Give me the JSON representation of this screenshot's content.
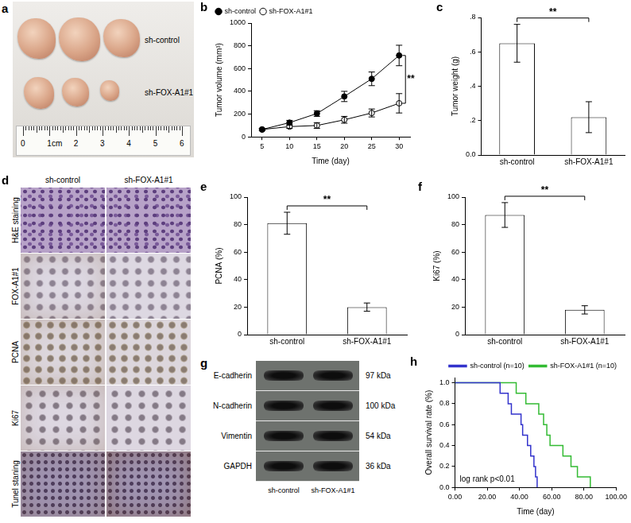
{
  "figure_a": {
    "panel": "a",
    "type": "photo",
    "rows": [
      "sh-control",
      "sh-FOX-A1#1"
    ],
    "ruler_labels": [
      "0",
      "1cm",
      "2",
      "3",
      "4",
      "5",
      "6"
    ]
  },
  "chart_data": [
    {
      "panel": "b",
      "type": "line",
      "x": [
        5,
        10,
        15,
        20,
        25,
        30
      ],
      "xlim": [
        3,
        32
      ],
      "xticks": [
        5,
        10,
        15,
        20,
        25,
        30
      ],
      "ylim": [
        0,
        1000
      ],
      "yticks": [
        0,
        200,
        400,
        600,
        800,
        1000
      ],
      "x_label": "Time (day)",
      "y_label": "Tumor volume (mm³)",
      "grid": false,
      "legend": "top-left",
      "annotation": "**",
      "series": [
        {
          "name": "sh-control",
          "color": "#000000",
          "marker": "filled_circle",
          "values": [
            65,
            125,
            205,
            355,
            510,
            715
          ],
          "errors": [
            10,
            20,
            25,
            45,
            60,
            90
          ]
        },
        {
          "name": "sh-FOX-A1#1",
          "color": "#000000",
          "marker": "open_circle",
          "values": [
            65,
            90,
            100,
            150,
            210,
            295
          ],
          "errors": [
            8,
            15,
            25,
            30,
            35,
            85
          ]
        }
      ]
    },
    {
      "panel": "c",
      "type": "bar",
      "categories": [
        "sh-control",
        "sh-FOX-A1#1"
      ],
      "values": [
        0.65,
        0.22
      ],
      "errors": [
        0.11,
        0.09
      ],
      "color": "#ffffff",
      "ylim": [
        0,
        0.8
      ],
      "yticks": [
        {
          "value": 0,
          "label": "0.0"
        },
        {
          "value": 0.2,
          "label": ".2"
        },
        {
          "value": 0.4,
          "label": ".4"
        },
        {
          "value": 0.6,
          "label": ".6"
        },
        {
          "value": 0.8,
          "label": ".8"
        }
      ],
      "y_label": "Tumor weight (g)",
      "grid": false,
      "annotation": "**"
    },
    {
      "panel": "e",
      "type": "bar",
      "categories": [
        "sh-control",
        "sh-FOX-A1#1"
      ],
      "values": [
        81,
        20
      ],
      "errors": [
        8,
        3
      ],
      "color": "#ffffff",
      "ylim": [
        0,
        100
      ],
      "yticks": [
        0,
        20,
        40,
        60,
        80,
        100
      ],
      "y_label": "PCNA (%)",
      "grid": false,
      "annotation": "**"
    },
    {
      "panel": "f",
      "type": "bar",
      "categories": [
        "sh-control",
        "sh-FOX-A1#1"
      ],
      "values": [
        87,
        18
      ],
      "errors": [
        9,
        3
      ],
      "color": "#ffffff",
      "ylim": [
        0,
        100
      ],
      "yticks": [
        0,
        20,
        40,
        60,
        80,
        100
      ],
      "y_label": "Ki67 (%)",
      "grid": false,
      "annotation": "**"
    },
    {
      "panel": "h",
      "type": "line",
      "line_style": "step",
      "xlim": [
        0,
        100
      ],
      "xticks": [
        {
          "value": 0,
          "label": "0.00"
        },
        {
          "value": 20,
          "label": "20.00"
        },
        {
          "value": 40,
          "label": "40.00"
        },
        {
          "value": 60,
          "label": "60.00"
        },
        {
          "value": 80,
          "label": "80.00"
        },
        {
          "value": 100,
          "label": "100.00"
        }
      ],
      "ylim": [
        0,
        1.05
      ],
      "yticks": [
        {
          "value": 0,
          "label": "0.0"
        },
        {
          "value": 0.2,
          "label": "0.2"
        },
        {
          "value": 0.4,
          "label": "0.4"
        },
        {
          "value": 0.6,
          "label": "0.6"
        },
        {
          "value": 0.8,
          "label": "0.8"
        },
        {
          "value": 1,
          "label": "1.0"
        }
      ],
      "x_label": "Time (day)",
      "y_label": "Overall survival rate (%)",
      "grid": false,
      "legend": "top-right",
      "annotation": "log rank p<0.01",
      "series": [
        {
          "name": "sh-control (n=10)",
          "color": "#3333cc",
          "x": [
            0,
            28,
            33,
            35,
            41,
            42,
            45,
            47,
            49,
            50,
            51
          ],
          "values": [
            1,
            0.9,
            0.8,
            0.7,
            0.6,
            0.5,
            0.4,
            0.3,
            0.2,
            0.1,
            0
          ]
        },
        {
          "name": "sh-FOX-A1#1 (n=10)",
          "color": "#33bb33",
          "x": [
            0,
            38,
            44,
            52,
            55,
            57,
            59,
            67,
            72,
            76,
            84
          ],
          "values": [
            1,
            0.9,
            0.8,
            0.7,
            0.6,
            0.5,
            0.4,
            0.3,
            0.2,
            0.1,
            0
          ]
        }
      ]
    }
  ],
  "figure_d": {
    "panel": "d",
    "type": "image_grid",
    "columns": [
      "sh-control",
      "sh-FOX-A1#1"
    ],
    "rows": [
      "H&E staining",
      "FOX-A1#1",
      "PCNA",
      "Ki67",
      "Tunel staning"
    ]
  },
  "figure_g": {
    "panel": "g",
    "type": "western_blot",
    "columns": [
      "sh-control",
      "sh-FOX-A1#1"
    ],
    "bands": [
      {
        "name": "E-cadherin",
        "size": "97 kDa"
      },
      {
        "name": "N-cadherin",
        "size": "100 kDa"
      },
      {
        "name": "Vimentin",
        "size": "54 kDa"
      },
      {
        "name": "GAPDH",
        "size": "36 kDa"
      }
    ]
  }
}
